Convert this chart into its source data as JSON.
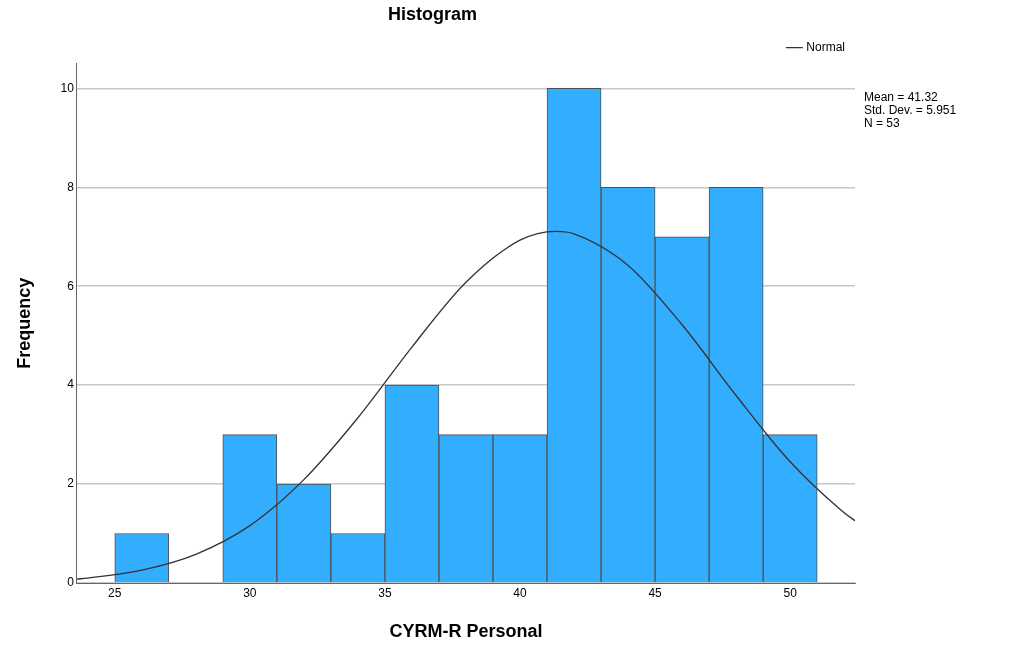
{
  "chart_data": {
    "type": "histogram",
    "title": "Histogram",
    "xlabel": "CYRM-R Personal",
    "ylabel": "Frequency",
    "bins": [
      25,
      27,
      29,
      31,
      33,
      35,
      37,
      39,
      41,
      43,
      45,
      47,
      49,
      51
    ],
    "series": [
      {
        "color": "#33adfe",
        "values": [
          1,
          0,
          3,
          2,
          1,
          4,
          3,
          3,
          10,
          8,
          7,
          8,
          3
        ]
      },
      {
        "type": "line",
        "name": "Normal",
        "color": "#333333",
        "x": [
          23.6,
          24,
          26,
          28,
          30,
          32,
          34,
          36,
          38,
          40,
          41.32,
          42,
          44,
          46,
          48,
          50,
          52,
          52.4
        ],
        "values": [
          0.08,
          0.1,
          0.26,
          0.58,
          1.16,
          2.09,
          3.34,
          4.77,
          6.08,
          6.93,
          7.11,
          7.06,
          6.42,
          5.22,
          3.79,
          2.45,
          1.42,
          1.26
        ]
      }
    ],
    "xlim": [
      23.6,
      52.4
    ],
    "xticks": [
      25,
      30,
      35,
      40,
      45,
      50
    ],
    "ylim": [
      0,
      10.5
    ],
    "yticks": [
      0,
      2,
      4,
      6,
      8,
      10
    ],
    "grid": "y",
    "legend": "top right",
    "marker": "none",
    "line_style": "solid",
    "annotations": [
      "Mean = 41.32",
      "Std. Dev. = 5.951",
      "N = 53"
    ]
  }
}
